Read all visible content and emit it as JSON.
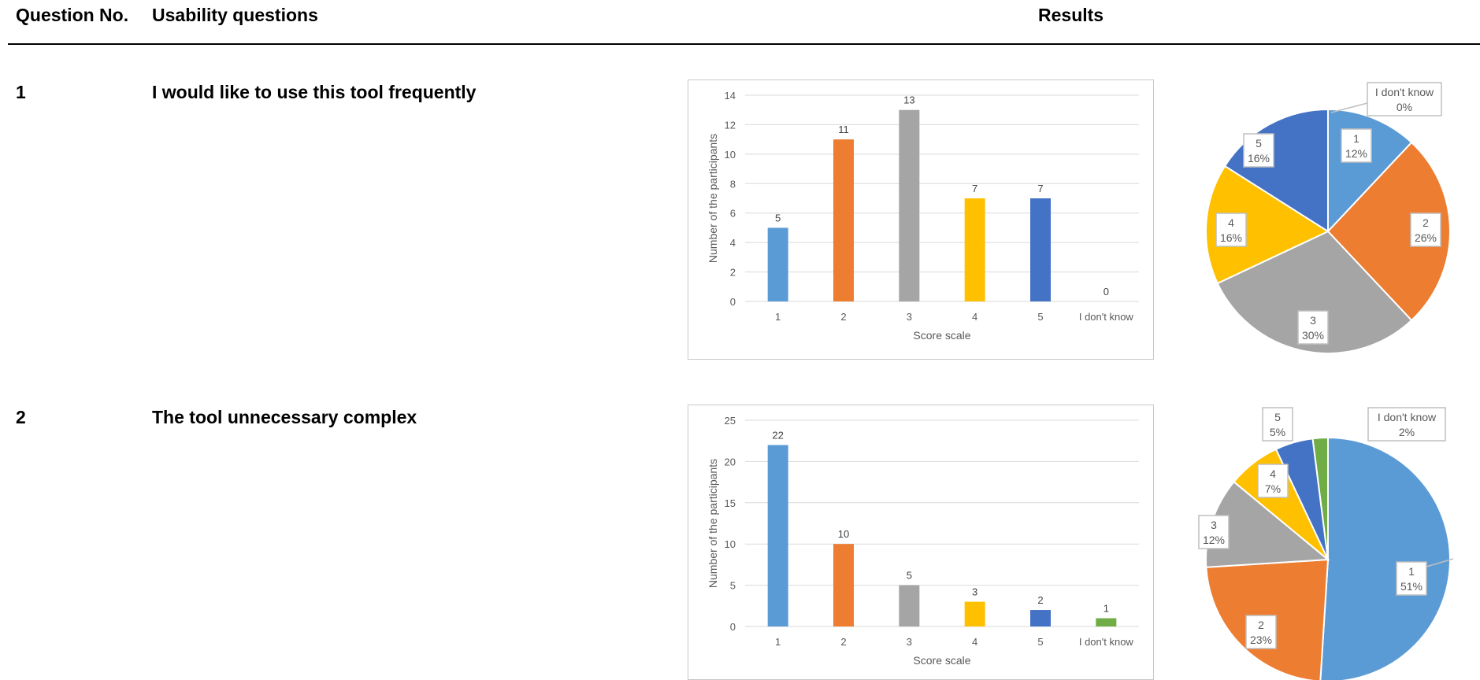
{
  "header": {
    "question_no": "Question No.",
    "usability_questions": "Usability questions",
    "results": "Results"
  },
  "questions": [
    {
      "number": "1",
      "text": "I would like to use this tool frequently"
    },
    {
      "number": "2",
      "text": "The tool unnecessary complex"
    }
  ],
  "colors": [
    "#5b9bd5",
    "#ed7d31",
    "#a5a5a5",
    "#ffc000",
    "#4472c4",
    "#70ad47"
  ],
  "chart_data": [
    {
      "type": "bar",
      "categories": [
        "1",
        "2",
        "3",
        "4",
        "5",
        "I don't know"
      ],
      "values": [
        5,
        11,
        13,
        7,
        7,
        0
      ],
      "xlabel": "Score scale",
      "ylabel": "Number of the participants",
      "ylim": [
        0,
        14
      ],
      "yticks": [
        0,
        2,
        4,
        6,
        8,
        10,
        12,
        14
      ],
      "grid": true
    },
    {
      "type": "pie",
      "categories": [
        "1",
        "2",
        "3",
        "4",
        "5",
        "I don't know"
      ],
      "values": [
        12,
        26,
        30,
        16,
        16,
        0
      ],
      "labels": [
        "12%",
        "26%",
        "30%",
        "16%",
        "16%",
        "0%"
      ]
    },
    {
      "type": "bar",
      "categories": [
        "1",
        "2",
        "3",
        "4",
        "5",
        "I don't know"
      ],
      "values": [
        22,
        10,
        5,
        3,
        2,
        1
      ],
      "xlabel": "Score scale",
      "ylabel": "Number of the participants",
      "ylim": [
        0,
        25
      ],
      "yticks": [
        0,
        5,
        10,
        15,
        20,
        25
      ],
      "grid": true
    },
    {
      "type": "pie",
      "categories": [
        "1",
        "2",
        "3",
        "4",
        "5",
        "I don't know"
      ],
      "values": [
        51,
        23,
        12,
        7,
        5,
        2
      ],
      "labels": [
        "51%",
        "23%",
        "12%",
        "7%",
        "5%",
        "2%"
      ]
    }
  ]
}
